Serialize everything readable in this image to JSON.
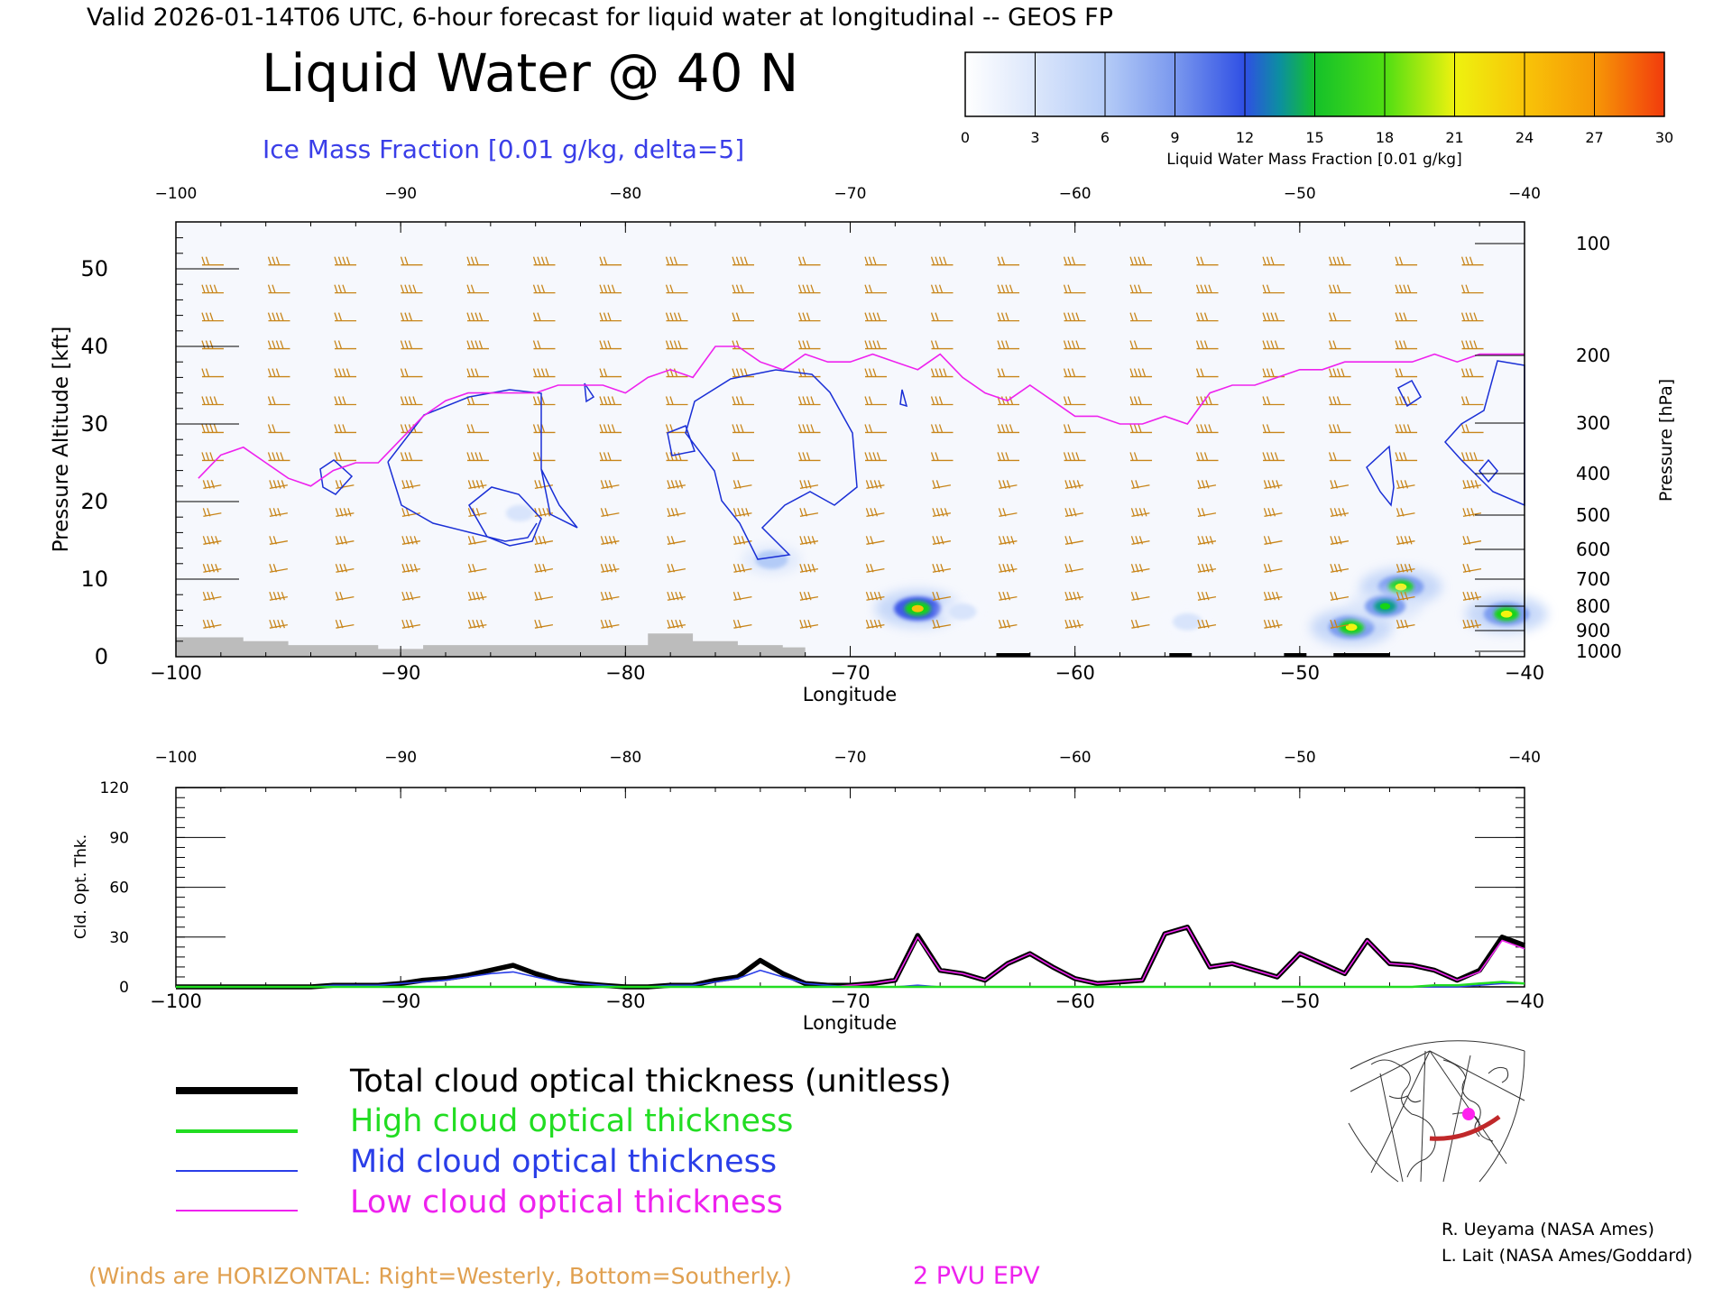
{
  "header": {
    "valid_line": "Valid 2026-01-14T06 UTC, 6-hour forecast for liquid water at longitudinal -- GEOS FP",
    "title": "Liquid Water @ 40 N",
    "subtitle": "Ice Mass Fraction [0.01 g/kg, delta=5]"
  },
  "colorbar": {
    "label": "Liquid Water Mass Fraction [0.01 g/kg]",
    "ticks": [
      "0",
      "3",
      "6",
      "9",
      "12",
      "15",
      "18",
      "21",
      "24",
      "27",
      "30"
    ],
    "colors": [
      "#f6f8fe",
      "#d8e4fb",
      "#b3cbf7",
      "#7f9ff0",
      "#3f5ce8",
      "#0d9f8a",
      "#16d416",
      "#83e50f",
      "#f3f30f",
      "#f7c20b",
      "#f79a06",
      "#f3530c"
    ]
  },
  "top_panel": {
    "xlabel": "Longitude",
    "ylabel": "Pressure Altitude [kft]",
    "right_label": "Pressure [hPa]",
    "x_ticks": [
      "−100",
      "−90",
      "−80",
      "−70",
      "−60",
      "−50",
      "−40"
    ],
    "y_ticks": [
      "0",
      "10",
      "20",
      "30",
      "40",
      "50"
    ],
    "pressure_ticks": [
      "100",
      "200",
      "300",
      "400",
      "500",
      "600",
      "700",
      "800",
      "900",
      "1000"
    ]
  },
  "bottom_panel": {
    "xlabel": "Longitude",
    "ylabel": "Cld. Opt. Thk.",
    "x_ticks": [
      "−100",
      "−90",
      "−80",
      "−70",
      "−60",
      "−50",
      "−40"
    ],
    "y_ticks": [
      "0",
      "30",
      "60",
      "90",
      "120"
    ]
  },
  "legend": [
    {
      "label": "Total cloud optical thickness (unitless)",
      "color": "#000000"
    },
    {
      "label": "High cloud optical thickness",
      "color": "#22dd22"
    },
    {
      "label": "Mid cloud optical thickness",
      "color": "#2a3ee8"
    },
    {
      "label": "Low cloud optical thickness",
      "color": "#ee22ee"
    }
  ],
  "footer": {
    "winds_note": "(Winds are HORIZONTAL: Right=Westerly, Bottom=Southerly.)",
    "epv_label": "2 PVU EPV",
    "credit1": "R. Ueyama (NASA Ames)",
    "credit2": "L. Lait (NASA Ames/Goddard)"
  },
  "colors": {
    "ice_contour": "#1a2fd6",
    "epv_line": "#ee22ee",
    "wind_barbs": "#c8851a",
    "winds_note": "#e0a050",
    "terrain": "#bcbcbc"
  },
  "chart_data": [
    {
      "type": "heatmap",
      "title": "Liquid Water @ 40 N",
      "xlabel": "Longitude",
      "ylabel": "Pressure Altitude [kft]",
      "xlim": [
        -100,
        -40
      ],
      "ylim": [
        0,
        56
      ],
      "blobs": [
        {
          "x": -67.0,
          "y": 6.2,
          "value": 18
        },
        {
          "x": -45.5,
          "y": 9.0,
          "value": 17
        },
        {
          "x": -47.7,
          "y": 3.8,
          "value": 17
        },
        {
          "x": -46.2,
          "y": 6.5,
          "value": 14
        },
        {
          "x": -40.8,
          "y": 5.5,
          "value": 17
        },
        {
          "x": -73.5,
          "y": 12.5,
          "value": 9
        },
        {
          "x": -84.7,
          "y": 18.5,
          "value": 6
        },
        {
          "x": -55.0,
          "y": 4.5,
          "value": 7
        },
        {
          "x": -65.0,
          "y": 5.8,
          "value": 6
        },
        {
          "x": -42.0,
          "y": 23.0,
          "value": 4
        }
      ],
      "epv_2pvu_line": {
        "x": [
          -99.0,
          -98.0,
          -97.0,
          -96.0,
          -95.0,
          -94.0,
          -93.0,
          -92.0,
          -91.0,
          -90.0,
          -89.0,
          -88.0,
          -87.0,
          -86.0,
          -85.0,
          -84.0,
          -83.0,
          -82.0,
          -81.0,
          -80.0,
          -79.0,
          -78.0,
          -77.0,
          -76.0,
          -75.0,
          -74.0,
          -73.0,
          -72.0,
          -71.0,
          -70.0,
          -69.0,
          -68.0,
          -67.0,
          -66.0,
          -65.0,
          -64.0,
          -63.0,
          -62.0,
          -61.0,
          -60.0,
          -59.0,
          -58.0,
          -57.0,
          -56.0,
          -55.0,
          -54.0,
          -53.0,
          -52.0,
          -51.0,
          -50.0,
          -49.0,
          -48.0,
          -47.0,
          -46.0,
          -45.0,
          -44.0,
          -43.0,
          -42.0,
          -41.0,
          -40.0
        ],
        "y": [
          23,
          26,
          27,
          25,
          23,
          22,
          24,
          25,
          25,
          28,
          31,
          33,
          34,
          34,
          34,
          34,
          35,
          35,
          35,
          34,
          36,
          37,
          36,
          40,
          40,
          38,
          37,
          39,
          38,
          38,
          39,
          38,
          37,
          39,
          36,
          34,
          33,
          35,
          33,
          31,
          31,
          30,
          30,
          31,
          30,
          34,
          35,
          35,
          36,
          37,
          37,
          38,
          38,
          38,
          38,
          39,
          38,
          39,
          39,
          39
        ]
      },
      "terrain_kft": {
        "x": [
          -100,
          -97,
          -95,
          -93,
          -91,
          -89,
          -87,
          -85,
          -83,
          -81,
          -79,
          -77,
          -75,
          -73,
          -72
        ],
        "y": [
          2.5,
          2.0,
          1.5,
          1.5,
          1.0,
          1.5,
          1.5,
          1.5,
          1.5,
          1.5,
          3.0,
          2.0,
          1.5,
          1.2,
          0
        ]
      }
    },
    {
      "type": "line",
      "xlabel": "Longitude",
      "ylabel": "Cld. Opt. Thk.",
      "xlim": [
        -100,
        -40
      ],
      "ylim": [
        0,
        120
      ],
      "x": [
        -100,
        -99,
        -98,
        -97,
        -96,
        -95,
        -94,
        -93,
        -92,
        -91,
        -90,
        -89,
        -88,
        -87,
        -86,
        -85,
        -84,
        -83,
        -82,
        -81,
        -80,
        -79,
        -78,
        -77,
        -76,
        -75,
        -74,
        -73,
        -72,
        -71,
        -70,
        -69,
        -68,
        -67,
        -66,
        -65,
        -64,
        -63,
        -62,
        -61,
        -60,
        -59,
        -58,
        -57,
        -56,
        -55,
        -54,
        -53,
        -52,
        -51,
        -50,
        -49,
        -48,
        -47,
        -46,
        -45,
        -44,
        -43,
        -42,
        -41,
        -40
      ],
      "series": [
        {
          "name": "Total cloud optical thickness (unitless)",
          "values": [
            0,
            0,
            0,
            0,
            0,
            0,
            0,
            1,
            1,
            1,
            2,
            4,
            5,
            7,
            10,
            13,
            8,
            4,
            2,
            1,
            0,
            0,
            1,
            1,
            4,
            6,
            16,
            8,
            2,
            1,
            1,
            2,
            4,
            31,
            10,
            8,
            4,
            14,
            20,
            12,
            5,
            2,
            3,
            4,
            32,
            36,
            12,
            14,
            10,
            6,
            20,
            14,
            8,
            28,
            14,
            13,
            10,
            4,
            10,
            30,
            25
          ]
        },
        {
          "name": "High cloud optical thickness",
          "values": [
            0,
            0,
            0,
            0,
            0,
            0,
            0,
            0,
            0,
            0,
            0,
            0,
            0,
            0,
            0,
            0,
            0,
            0,
            0,
            0,
            0,
            0,
            0,
            0,
            0,
            0,
            0,
            0,
            0,
            0,
            0,
            0,
            0,
            0,
            0,
            0,
            0,
            0,
            0,
            0,
            0,
            0,
            0,
            0,
            0,
            0,
            0,
            0,
            0,
            0,
            0,
            0,
            0,
            0,
            0,
            0,
            1,
            1,
            2,
            3,
            2
          ]
        },
        {
          "name": "Mid cloud optical thickness",
          "values": [
            0,
            0,
            0,
            0,
            0,
            0,
            0,
            1,
            1,
            1,
            2,
            3,
            4,
            6,
            8,
            9,
            6,
            3,
            2,
            1,
            0,
            0,
            1,
            1,
            3,
            5,
            10,
            6,
            2,
            1,
            0,
            0,
            0,
            1,
            0,
            0,
            0,
            0,
            0,
            0,
            0,
            0,
            0,
            0,
            0,
            0,
            0,
            0,
            0,
            0,
            0,
            0,
            0,
            0,
            0,
            0,
            0,
            0,
            1,
            2,
            2
          ]
        },
        {
          "name": "Low cloud optical thickness",
          "values": [
            0,
            0,
            0,
            0,
            0,
            0,
            0,
            0,
            0,
            0,
            0,
            0,
            0,
            0,
            0,
            0,
            0,
            0,
            0,
            0,
            0,
            0,
            0,
            0,
            0,
            0,
            0,
            0,
            0,
            0,
            1,
            2,
            4,
            30,
            10,
            8,
            4,
            14,
            20,
            12,
            5,
            2,
            3,
            4,
            32,
            36,
            12,
            14,
            10,
            6,
            20,
            14,
            8,
            28,
            14,
            13,
            10,
            4,
            9,
            28,
            23
          ]
        }
      ]
    }
  ]
}
